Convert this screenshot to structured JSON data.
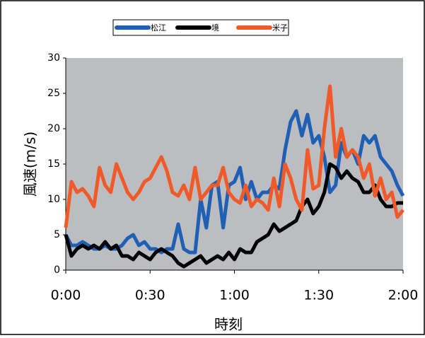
{
  "chart_data": {
    "type": "line",
    "x_label": "時刻",
    "y_label": "風速(m/s)",
    "x": [
      0,
      2,
      4,
      6,
      8,
      10,
      12,
      14,
      16,
      18,
      20,
      22,
      24,
      26,
      28,
      30,
      32,
      34,
      36,
      38,
      40,
      42,
      44,
      46,
      48,
      50,
      52,
      54,
      56,
      58,
      60,
      62,
      64,
      66,
      68,
      70,
      72,
      74,
      76,
      78,
      80,
      82,
      84,
      86,
      88,
      90,
      92,
      94,
      96,
      98,
      100,
      102,
      104,
      106,
      108,
      110,
      112,
      114,
      116,
      118,
      120
    ],
    "series": [
      {
        "name": "松江",
        "color": "#1f5fb4",
        "values": [
          5,
          3.5,
          3.5,
          4,
          3.5,
          3,
          3,
          3.5,
          3,
          3,
          3.5,
          4.5,
          5,
          3.5,
          4,
          3,
          3,
          2.5,
          3,
          3,
          6.5,
          3,
          2.5,
          2.5,
          10,
          6,
          12,
          12.5,
          6,
          12,
          12.5,
          14.5,
          10,
          12.5,
          10,
          11,
          11,
          12,
          11.5,
          17,
          21,
          22.5,
          19,
          22,
          18,
          19,
          16,
          11,
          12,
          18,
          16,
          17,
          15,
          19,
          18,
          19,
          16,
          15,
          14,
          12,
          10.5
        ]
      },
      {
        "name": "境",
        "color": "#000000",
        "values": [
          5,
          2,
          3,
          3.5,
          3,
          3.5,
          3,
          4,
          3,
          3.5,
          2,
          2,
          1.5,
          2.5,
          2,
          1.5,
          2.5,
          3,
          2.5,
          2,
          1,
          0.5,
          1,
          1.5,
          2,
          1,
          1.5,
          2,
          1.5,
          2.5,
          1.5,
          3,
          2.5,
          2.5,
          4,
          4.5,
          5,
          6.5,
          5.5,
          6,
          6.5,
          7,
          9,
          10,
          8,
          9,
          11,
          15,
          14.5,
          13,
          14,
          13,
          12.5,
          11,
          11,
          12,
          10,
          9,
          9,
          9.5,
          9.5
        ]
      },
      {
        "name": "米子",
        "color": "#f05a28",
        "values": [
          6,
          12.5,
          11,
          11.5,
          10.5,
          9,
          14.5,
          12,
          11,
          15,
          13,
          11,
          10,
          11,
          12.5,
          13,
          14.5,
          16,
          14,
          11,
          10.5,
          12,
          10,
          14.5,
          10,
          11,
          12,
          12,
          14.5,
          11,
          10,
          9.5,
          12,
          9,
          10,
          9.5,
          8.5,
          13,
          9,
          15,
          13,
          10,
          8.5,
          17,
          11.5,
          12,
          20,
          26,
          16,
          20,
          16,
          17,
          16,
          13,
          15,
          10.5,
          13,
          10,
          11,
          7.5,
          8.5
        ]
      }
    ],
    "xlim": [
      0,
      120
    ],
    "xticks": [
      {
        "value": 0,
        "label": "0:00"
      },
      {
        "value": 30,
        "label": "0:30"
      },
      {
        "value": 60,
        "label": "1:00"
      },
      {
        "value": 90,
        "label": "1:30"
      },
      {
        "value": 120,
        "label": "2:00"
      }
    ],
    "ylim": [
      0,
      30
    ],
    "yticks": [
      0,
      5,
      10,
      15,
      20,
      25,
      30
    ],
    "grid": false
  }
}
